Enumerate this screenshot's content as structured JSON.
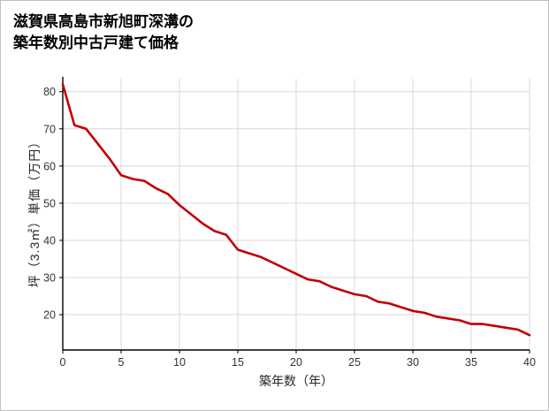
{
  "page": {
    "title_line1": "滋賀県高島市新旭町深溝の",
    "title_line2": "築年数別中古戸建て価格"
  },
  "chart_data": {
    "type": "line",
    "title": "滋賀県高島市新旭町深溝の築年数別中古戸建て価格",
    "xlabel": "築年数（年）",
    "ylabel": "坪（3.3㎡）単価（万円）",
    "x": [
      0,
      1,
      2,
      3,
      4,
      5,
      6,
      7,
      8,
      9,
      10,
      11,
      12,
      13,
      14,
      15,
      16,
      17,
      18,
      19,
      20,
      21,
      22,
      23,
      24,
      25,
      26,
      27,
      28,
      29,
      30,
      31,
      32,
      33,
      34,
      35,
      36,
      37,
      38,
      39,
      40
    ],
    "values": [
      82,
      71,
      70,
      66,
      62,
      57.5,
      56.5,
      56,
      54,
      52.5,
      49.5,
      47,
      44.5,
      42.5,
      41.5,
      37.5,
      36.5,
      35.5,
      34,
      32.5,
      31,
      29.5,
      29,
      27.5,
      26.5,
      25.5,
      25,
      23.5,
      23,
      22,
      21,
      20.5,
      19.5,
      19,
      18.5,
      17.5,
      17.5,
      17,
      16.5,
      16,
      14.5
    ],
    "xlim": [
      0,
      40
    ],
    "ylim": [
      10.5,
      83.5
    ],
    "x_ticks": [
      0,
      5,
      10,
      15,
      20,
      25,
      30,
      35,
      40
    ],
    "y_ticks": [
      20,
      30,
      40,
      50,
      60,
      70,
      80
    ],
    "grid": true,
    "legend_position": "none",
    "line_color": "#c00000",
    "grid_color": "#d9d9d9",
    "axis_color": "#000000",
    "tick_label_color": "#333333"
  }
}
